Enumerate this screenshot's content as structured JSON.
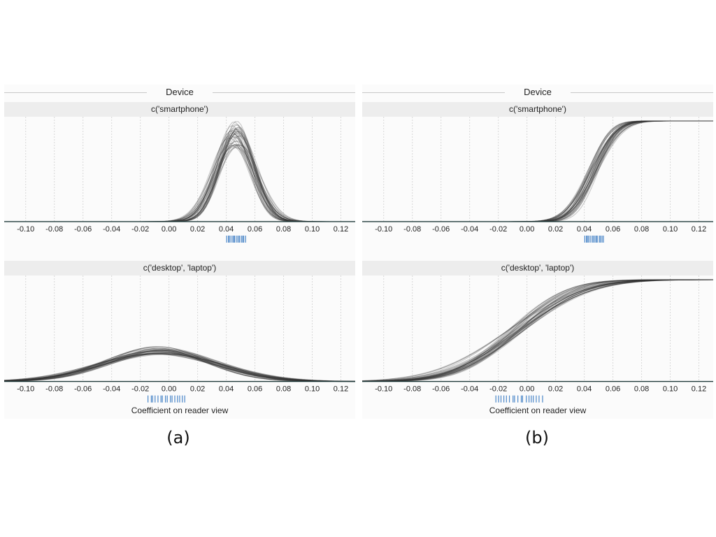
{
  "panels": [
    {
      "id": "a",
      "label": "(a)",
      "facet_title": "Device",
      "axis_title": "Coefficient on reader view",
      "subplots": [
        {
          "strip": "c('smartphone')",
          "show_axis_title": false
        },
        {
          "strip": "c('desktop', 'laptop')",
          "show_axis_title": true
        }
      ]
    },
    {
      "id": "b",
      "label": "(b)",
      "facet_title": "Device",
      "axis_title": "Coefficient on reader view",
      "subplots": [
        {
          "strip": "c('smartphone')",
          "show_axis_title": false
        },
        {
          "strip": "c('desktop', 'laptop')",
          "show_axis_title": true
        }
      ]
    }
  ],
  "colors": {
    "curve": "#333333",
    "rug": "#4a86c8",
    "grid": "#d8d8d8",
    "baseline": "#1f3a3a"
  },
  "chart_data": [
    {
      "panel": "a",
      "type": "line",
      "description_kind": "density",
      "xlim": [
        -0.115,
        0.13
      ],
      "ticks": [
        -0.1,
        -0.08,
        -0.06,
        -0.04,
        -0.02,
        0.0,
        0.02,
        0.04,
        0.06,
        0.08,
        0.1,
        0.12
      ],
      "tick_labels": [
        "-0.10",
        "-0.08",
        "-0.06",
        "-0.04",
        "-0.02",
        "0.00",
        "0.02",
        "0.04",
        "0.06",
        "0.08",
        "0.10",
        "0.12"
      ],
      "grid_x": true,
      "subplots": [
        {
          "group": "c('smartphone')",
          "curve_count": 40,
          "center_mean": 0.046,
          "center_spread": 0.004,
          "sd_mean": 0.013,
          "sd_spread": 0.002,
          "rug_range": [
            0.04,
            0.054
          ],
          "rug_count": 14,
          "ymax": 1.0
        },
        {
          "group": "c('desktop', 'laptop')",
          "curve_count": 40,
          "center_mean": -0.006,
          "center_spread": 0.006,
          "sd_mean": 0.038,
          "sd_spread": 0.005,
          "rug_range": [
            -0.015,
            0.012
          ],
          "rug_count": 16,
          "ymax": 2.9
        }
      ]
    },
    {
      "panel": "b",
      "type": "line",
      "description_kind": "cumulative",
      "xlim": [
        -0.115,
        0.13
      ],
      "ticks": [
        -0.1,
        -0.08,
        -0.06,
        -0.04,
        -0.02,
        0.0,
        0.02,
        0.04,
        0.06,
        0.08,
        0.1,
        0.12
      ],
      "tick_labels": [
        "-0.10",
        "-0.08",
        "-0.06",
        "-0.04",
        "-0.02",
        "0.00",
        "0.02",
        "0.04",
        "0.06",
        "0.08",
        "0.10",
        "0.12"
      ],
      "grid_x": true,
      "subplots": [
        {
          "group": "c('smartphone')",
          "curve_count": 40,
          "center_mean": 0.046,
          "center_spread": 0.004,
          "sd_mean": 0.013,
          "sd_spread": 0.002,
          "rug_range": [
            0.04,
            0.054
          ],
          "rug_count": 14,
          "ymax": 1.0
        },
        {
          "group": "c('desktop', 'laptop')",
          "curve_count": 40,
          "center_mean": -0.008,
          "center_spread": 0.006,
          "sd_mean": 0.036,
          "sd_spread": 0.006,
          "rug_range": [
            -0.022,
            0.012
          ],
          "rug_count": 18,
          "ymax": 1.0
        }
      ]
    }
  ]
}
